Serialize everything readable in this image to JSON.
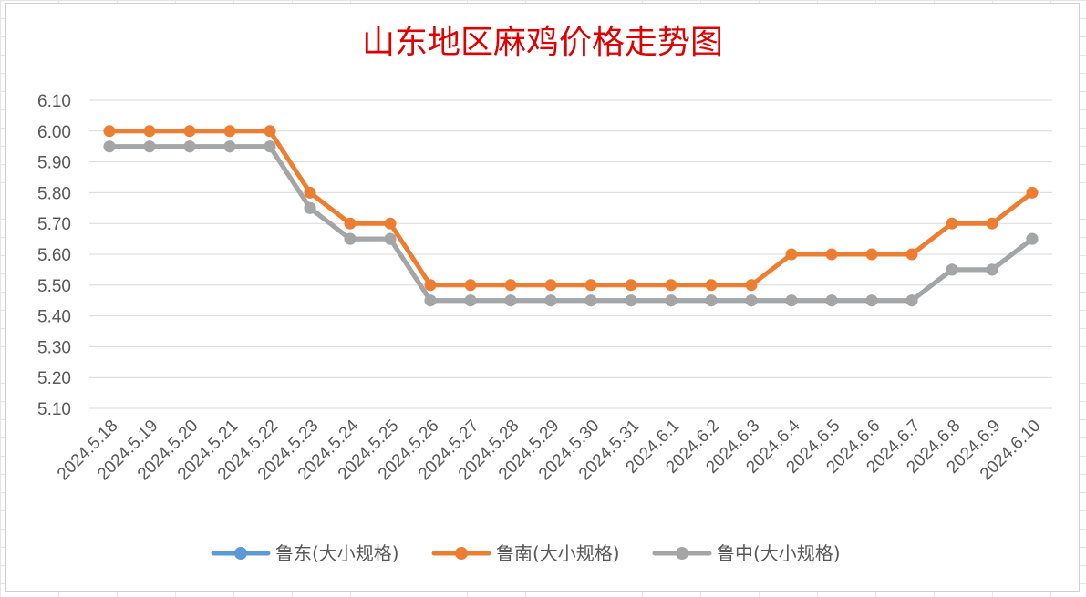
{
  "chart_data": {
    "type": "line",
    "title": "山东地区麻鸡价格走势图",
    "xlabel": "",
    "ylabel": "",
    "ylim": [
      5.1,
      6.1
    ],
    "yticks": [
      "6.10",
      "6.00",
      "5.90",
      "5.80",
      "5.70",
      "5.60",
      "5.50",
      "5.40",
      "5.30",
      "5.20",
      "5.10"
    ],
    "grid": true,
    "legend_position": "bottom",
    "categories": [
      "2024.5.18",
      "2024.5.19",
      "2024.5.20",
      "2024.5.21",
      "2024.5.22",
      "2024.5.23",
      "2024.5.24",
      "2024.5.25",
      "2024.5.26",
      "2024.5.27",
      "2024.5.28",
      "2024.5.29",
      "2024.5.30",
      "2024.5.31",
      "2024.6.1",
      "2024.6.2",
      "2024.6.3",
      "2024.6.4",
      "2024.6.5",
      "2024.6.6",
      "2024.6.7",
      "2024.6.8",
      "2024.6.9",
      "2024.6.10"
    ],
    "series": [
      {
        "name": "鲁东(大小规格)",
        "color": "#5b9bd5",
        "values": [
          5.95,
          5.95,
          5.95,
          5.95,
          5.95,
          5.75,
          5.65,
          5.65,
          5.45,
          5.45,
          5.45,
          5.45,
          5.45,
          5.45,
          5.45,
          5.45,
          5.45,
          5.45,
          5.45,
          5.45,
          5.45,
          5.55,
          5.55,
          5.65
        ]
      },
      {
        "name": "鲁南(大小规格)",
        "color": "#ed7d31",
        "values": [
          6.0,
          6.0,
          6.0,
          6.0,
          6.0,
          5.8,
          5.7,
          5.7,
          5.5,
          5.5,
          5.5,
          5.5,
          5.5,
          5.5,
          5.5,
          5.5,
          5.5,
          5.6,
          5.6,
          5.6,
          5.6,
          5.7,
          5.7,
          5.8
        ]
      },
      {
        "name": "鲁中(大小规格)",
        "color": "#a5a5a5",
        "values": [
          5.95,
          5.95,
          5.95,
          5.95,
          5.95,
          5.75,
          5.65,
          5.65,
          5.45,
          5.45,
          5.45,
          5.45,
          5.45,
          5.45,
          5.45,
          5.45,
          5.45,
          5.45,
          5.45,
          5.45,
          5.45,
          5.55,
          5.55,
          5.65
        ]
      }
    ]
  }
}
